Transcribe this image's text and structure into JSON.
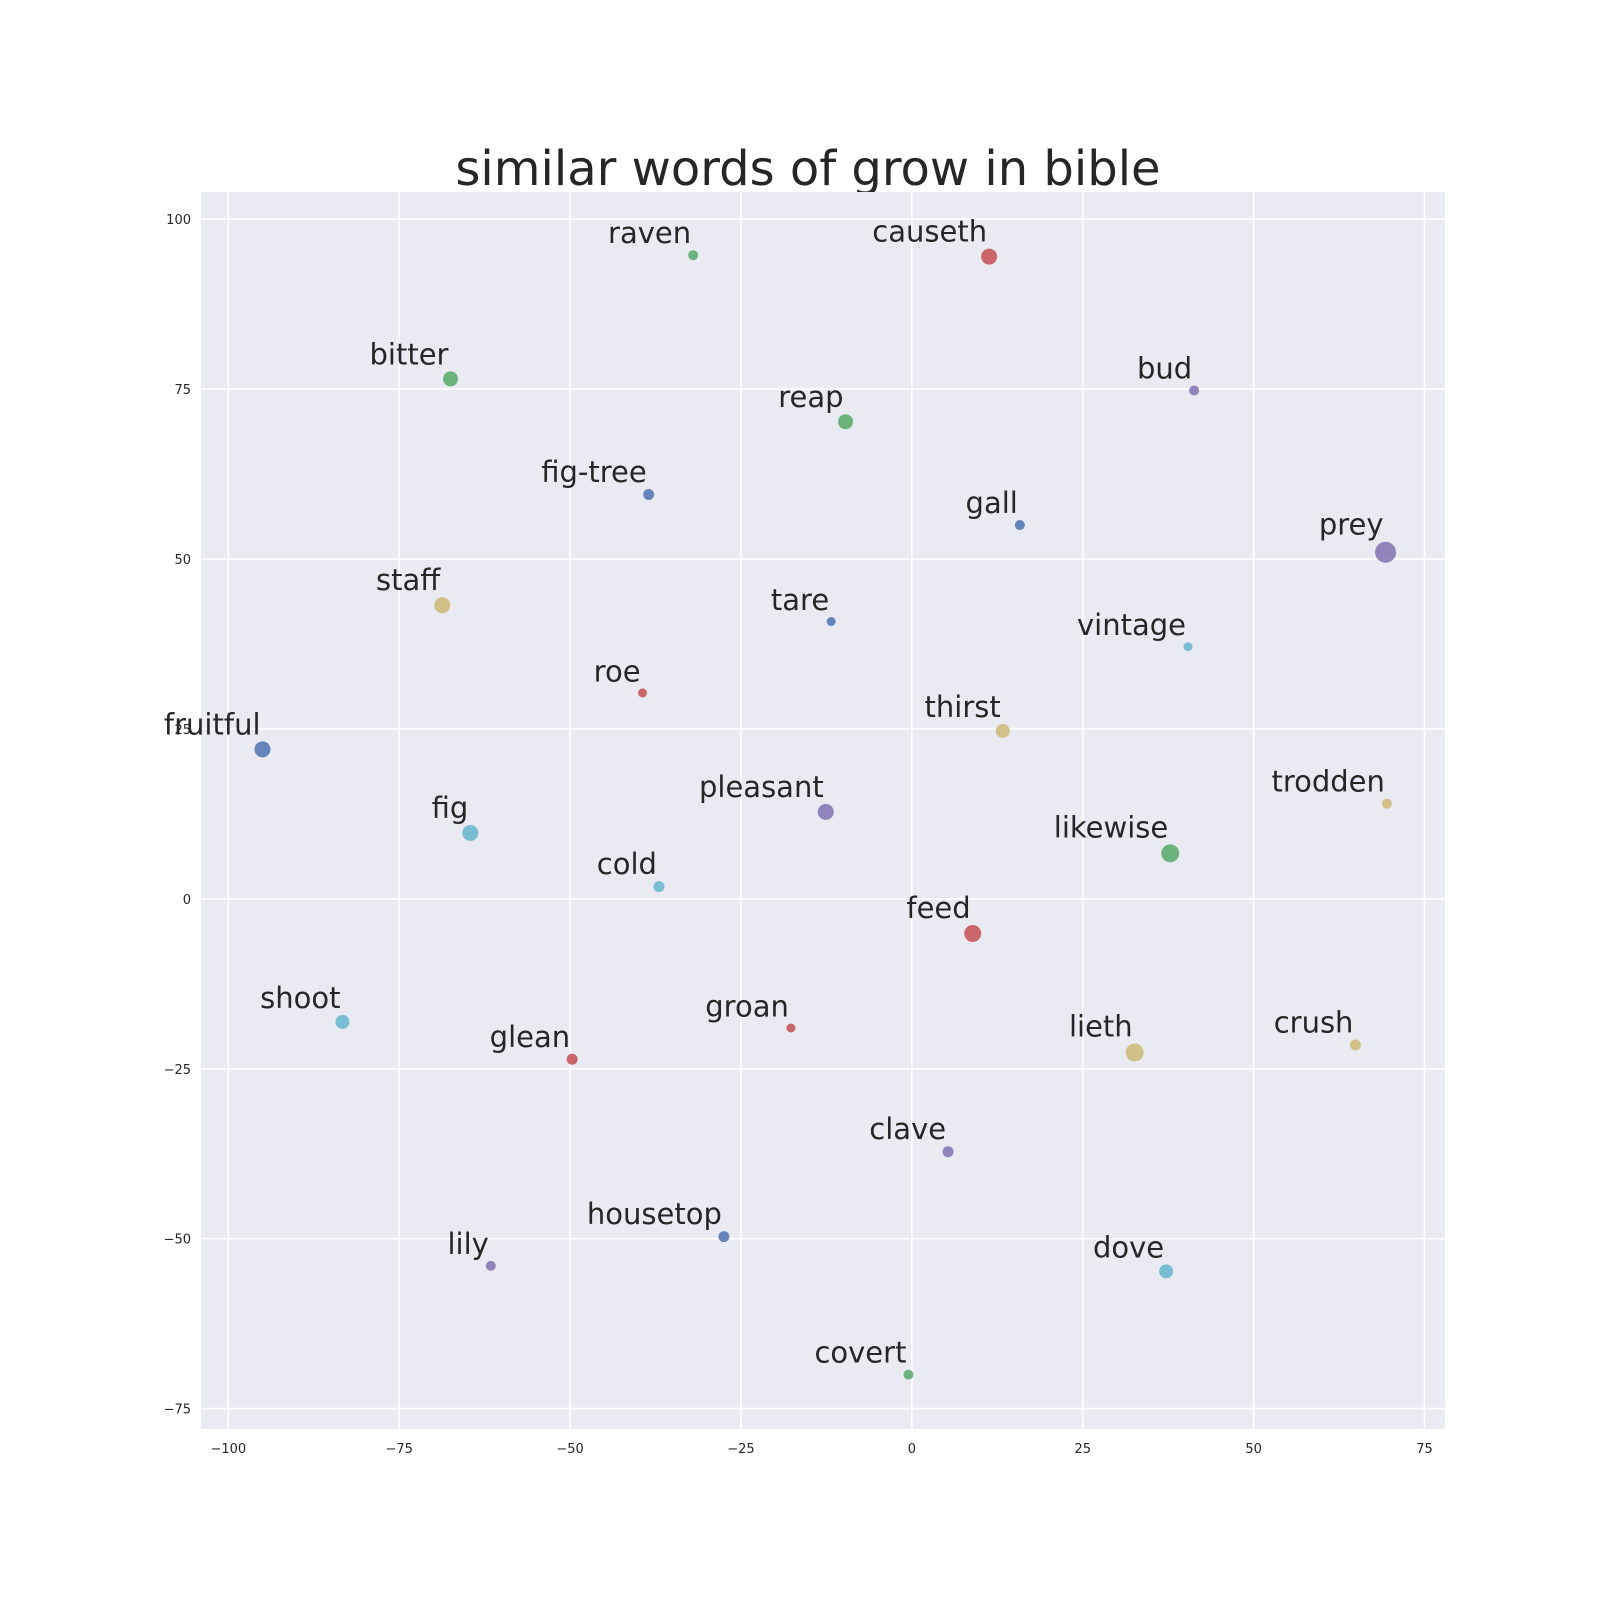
{
  "chart_data": {
    "type": "scatter",
    "title": "similar words of grow in bible",
    "xlabel": "",
    "ylabel": "",
    "xlim": [
      -104,
      78
    ],
    "ylim": [
      -78,
      104
    ],
    "grid": true,
    "x_ticks": [
      -100,
      -75,
      -50,
      -25,
      0,
      25,
      50,
      75
    ],
    "y_ticks": [
      100,
      75,
      50,
      25,
      0,
      -25,
      -50,
      -75
    ],
    "x_tick_labels": [
      "−100",
      "−75",
      "−50",
      "−25",
      "0",
      "25",
      "50",
      "75"
    ],
    "y_tick_labels": [
      "100",
      "75",
      "50",
      "25",
      "0",
      "−25",
      "−50",
      "−75"
    ],
    "palette": {
      "blue": "#4c72b0",
      "green": "#55a868",
      "red": "#c44e52",
      "purple": "#8172b2",
      "yellow": "#ccb974",
      "cyan": "#64b5cd",
      "background": "#eaeaf2"
    },
    "points": [
      {
        "word": "raven",
        "x": -32,
        "y": 94.7,
        "size": 5,
        "color": "green"
      },
      {
        "word": "causeth",
        "x": 11.3,
        "y": 94.5,
        "size": 8,
        "color": "red"
      },
      {
        "word": "bitter",
        "x": -67.5,
        "y": 76.5,
        "size": 7.5,
        "color": "green"
      },
      {
        "word": "bud",
        "x": 41.3,
        "y": 74.8,
        "size": 5,
        "color": "purple"
      },
      {
        "word": "reap",
        "x": -9.7,
        "y": 70.2,
        "size": 7.5,
        "color": "green"
      },
      {
        "word": "fig-tree",
        "x": -38.5,
        "y": 59.5,
        "size": 5.5,
        "color": "blue"
      },
      {
        "word": "gall",
        "x": 15.8,
        "y": 55,
        "size": 5,
        "color": "blue"
      },
      {
        "word": "prey",
        "x": 69.3,
        "y": 51,
        "size": 10.5,
        "color": "purple"
      },
      {
        "word": "staff",
        "x": -68.7,
        "y": 43.2,
        "size": 8,
        "color": "yellow"
      },
      {
        "word": "tare",
        "x": -11.8,
        "y": 40.8,
        "size": 4.5,
        "color": "blue"
      },
      {
        "word": "vintage",
        "x": 40.4,
        "y": 37.1,
        "size": 4.5,
        "color": "cyan"
      },
      {
        "word": "roe",
        "x": -39.4,
        "y": 30.3,
        "size": 4.5,
        "color": "red"
      },
      {
        "word": "thirst",
        "x": 13.3,
        "y": 24.7,
        "size": 7,
        "color": "yellow"
      },
      {
        "word": "fruitful",
        "x": -95,
        "y": 22,
        "size": 8,
        "color": "blue"
      },
      {
        "word": "trodden",
        "x": 69.5,
        "y": 14,
        "size": 5,
        "color": "yellow"
      },
      {
        "word": "pleasant",
        "x": -12.6,
        "y": 12.8,
        "size": 8,
        "color": "purple"
      },
      {
        "word": "fig",
        "x": -64.6,
        "y": 9.7,
        "size": 8,
        "color": "cyan"
      },
      {
        "word": "likewise",
        "x": 37.8,
        "y": 6.7,
        "size": 9,
        "color": "green"
      },
      {
        "word": "cold",
        "x": -37,
        "y": 1.8,
        "size": 5.5,
        "color": "cyan"
      },
      {
        "word": "feed",
        "x": 8.9,
        "y": -5.1,
        "size": 8.5,
        "color": "red"
      },
      {
        "word": "shoot",
        "x": -83.3,
        "y": -18.1,
        "size": 7,
        "color": "cyan"
      },
      {
        "word": "groan",
        "x": -17.7,
        "y": -19,
        "size": 4.5,
        "color": "red"
      },
      {
        "word": "crush",
        "x": 64.9,
        "y": -21.5,
        "size": 5.5,
        "color": "yellow"
      },
      {
        "word": "glean",
        "x": -49.7,
        "y": -23.6,
        "size": 5.5,
        "color": "red"
      },
      {
        "word": "lieth",
        "x": 32.6,
        "y": -22.6,
        "size": 9,
        "color": "yellow"
      },
      {
        "word": "clave",
        "x": 5.3,
        "y": -37.2,
        "size": 5.5,
        "color": "purple"
      },
      {
        "word": "housetop",
        "x": -27.5,
        "y": -49.7,
        "size": 5.5,
        "color": "blue"
      },
      {
        "word": "lily",
        "x": -61.6,
        "y": -54,
        "size": 5,
        "color": "purple"
      },
      {
        "word": "dove",
        "x": 37.2,
        "y": -54.8,
        "size": 7,
        "color": "cyan"
      },
      {
        "word": "covert",
        "x": -0.5,
        "y": -70,
        "size": 5,
        "color": "green"
      }
    ]
  }
}
